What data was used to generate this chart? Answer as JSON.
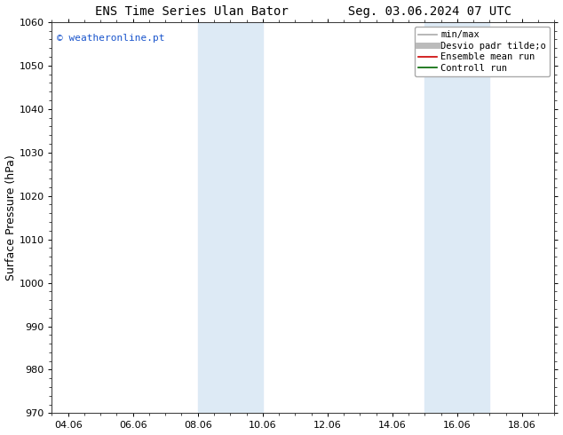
{
  "title_left": "ENS Time Series Ulan Bator",
  "title_right": "Seg. 03.06.2024 07 UTC",
  "ylabel": "Surface Pressure (hPa)",
  "ylim": [
    970,
    1060
  ],
  "yticks": [
    970,
    980,
    990,
    1000,
    1010,
    1020,
    1030,
    1040,
    1050,
    1060
  ],
  "xlim_start": 3.5,
  "xlim_end": 19.0,
  "xtick_labels": [
    "04.06",
    "06.06",
    "08.06",
    "10.06",
    "12.06",
    "14.06",
    "16.06",
    "18.06"
  ],
  "xtick_positions": [
    4,
    6,
    8,
    10,
    12,
    14,
    16,
    18
  ],
  "shaded_regions": [
    {
      "x_start": 8.0,
      "x_end": 10.0
    },
    {
      "x_start": 15.0,
      "x_end": 17.0
    }
  ],
  "shade_color": "#ddeaf5",
  "watermark_text": "© weatheronline.pt",
  "watermark_color": "#1a55cc",
  "legend_entries": [
    {
      "label": "min/max",
      "color": "#aaaaaa",
      "linestyle": "-",
      "linewidth": 1.2
    },
    {
      "label": "Desvio padr tilde;o",
      "color": "#bbbbbb",
      "linestyle": "-",
      "linewidth": 5
    },
    {
      "label": "Ensemble mean run",
      "color": "#cc0000",
      "linestyle": "-",
      "linewidth": 1.2
    },
    {
      "label": "Controll run",
      "color": "#006600",
      "linestyle": "-",
      "linewidth": 1.2
    }
  ],
  "bg_color": "#ffffff",
  "grid_color": "#dddddd",
  "title_fontsize": 10,
  "axis_label_fontsize": 9,
  "tick_fontsize": 8,
  "legend_fontsize": 7.5
}
